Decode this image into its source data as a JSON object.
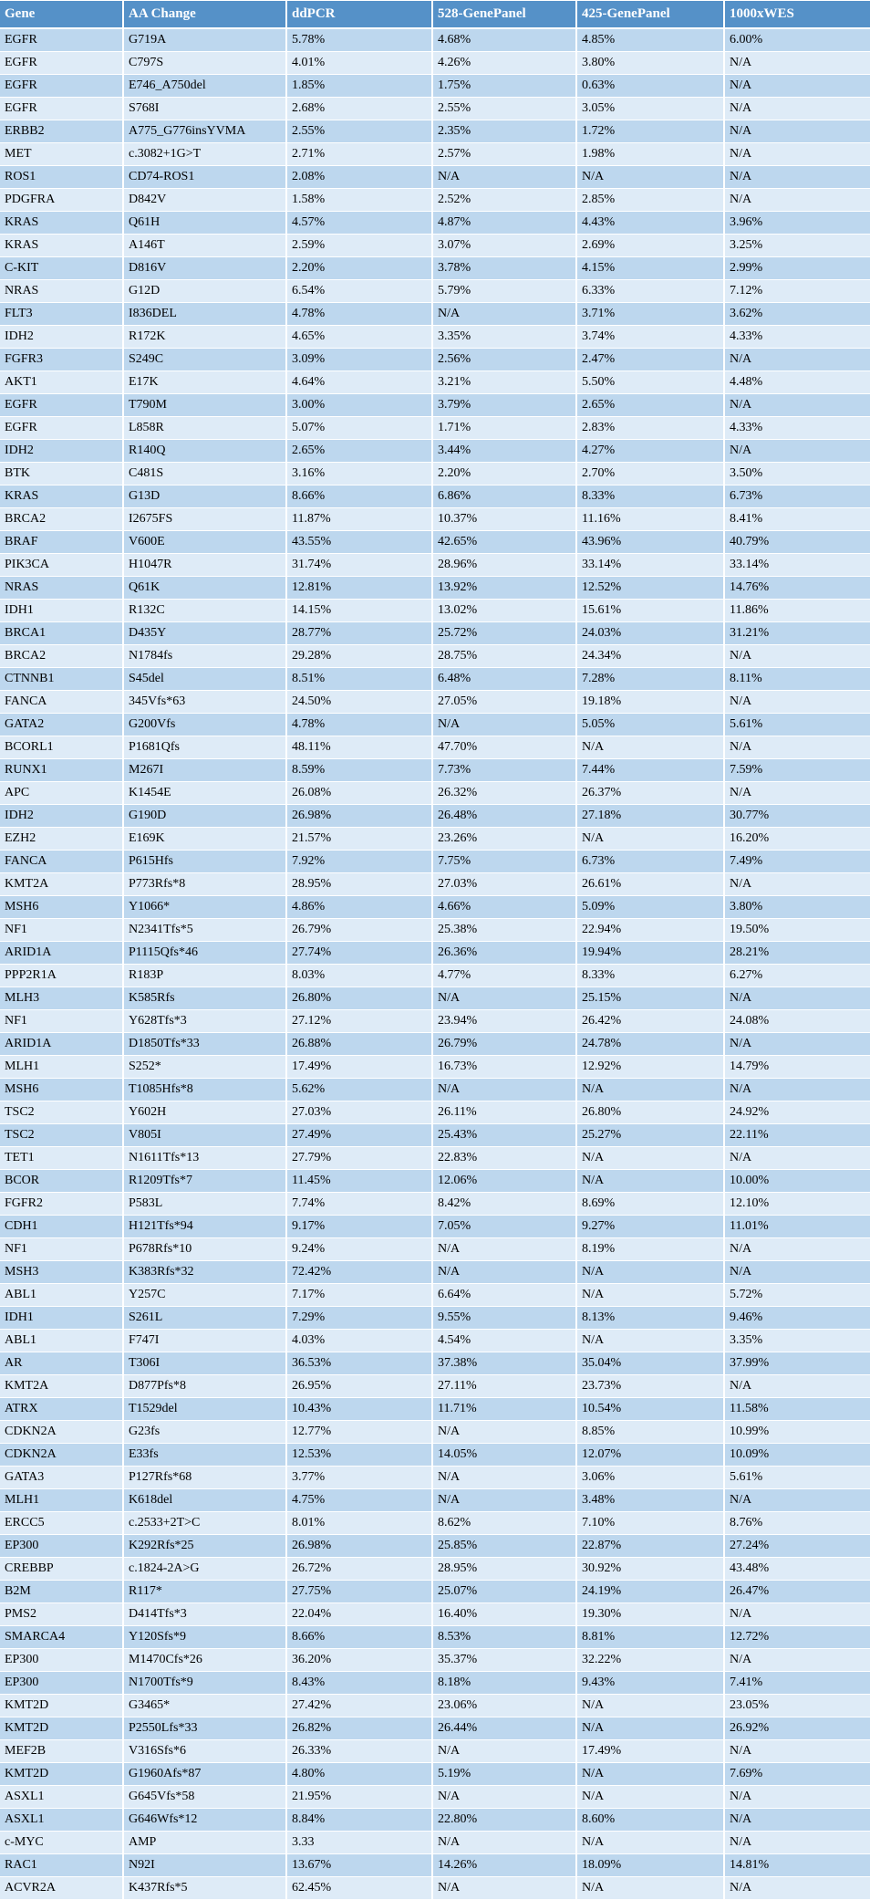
{
  "colors": {
    "header_bg": "#5591c8",
    "header_text": "#ffffff",
    "row_dark": "#bdd7ee",
    "row_light": "#deebf7",
    "body_text": "#000000",
    "grid": "#ffffff"
  },
  "table": {
    "columns": [
      {
        "id": "gene",
        "label": "Gene"
      },
      {
        "id": "aa-change",
        "label": "AA Change"
      },
      {
        "id": "ddpcr",
        "label": "ddPCR"
      },
      {
        "id": "528-genepanel",
        "label": "528-GenePanel"
      },
      {
        "id": "425-genepanel",
        "label": "425-GenePanel"
      },
      {
        "id": "1000xwes",
        "label": "1000xWES"
      }
    ],
    "rows": [
      [
        "EGFR",
        "G719A",
        "5.78%",
        "4.68%",
        "4.85%",
        "6.00%"
      ],
      [
        "EGFR",
        "C797S",
        "4.01%",
        "4.26%",
        "3.80%",
        "N/A"
      ],
      [
        "EGFR",
        "E746_A750del",
        "1.85%",
        "1.75%",
        "0.63%",
        "N/A"
      ],
      [
        "EGFR",
        "S768I",
        "2.68%",
        "2.55%",
        "3.05%",
        "N/A"
      ],
      [
        "ERBB2",
        "A775_G776insYVMA",
        "2.55%",
        "2.35%",
        "1.72%",
        "N/A"
      ],
      [
        "MET",
        "c.3082+1G>T",
        "2.71%",
        "2.57%",
        "1.98%",
        "N/A"
      ],
      [
        "ROS1",
        "CD74-ROS1",
        "2.08%",
        "N/A",
        "N/A",
        "N/A"
      ],
      [
        "PDGFRA",
        "D842V",
        "1.58%",
        "2.52%",
        "2.85%",
        "N/A"
      ],
      [
        "KRAS",
        "Q61H",
        "4.57%",
        "4.87%",
        "4.43%",
        "3.96%"
      ],
      [
        "KRAS",
        "A146T",
        "2.59%",
        "3.07%",
        "2.69%",
        "3.25%"
      ],
      [
        "C-KIT",
        "D816V",
        "2.20%",
        "3.78%",
        "4.15%",
        "2.99%"
      ],
      [
        "NRAS",
        "G12D",
        "6.54%",
        "5.79%",
        "6.33%",
        "7.12%"
      ],
      [
        "FLT3",
        "I836DEL",
        "4.78%",
        "N/A",
        "3.71%",
        "3.62%"
      ],
      [
        "IDH2",
        "R172K",
        "4.65%",
        "3.35%",
        "3.74%",
        "4.33%"
      ],
      [
        "FGFR3",
        "S249C",
        "3.09%",
        "2.56%",
        "2.47%",
        "N/A"
      ],
      [
        "AKT1",
        "E17K",
        "4.64%",
        "3.21%",
        "5.50%",
        "4.48%"
      ],
      [
        "EGFR",
        "T790M",
        "3.00%",
        "3.79%",
        "2.65%",
        "N/A"
      ],
      [
        "EGFR",
        "L858R",
        "5.07%",
        "1.71%",
        "2.83%",
        "4.33%"
      ],
      [
        "IDH2",
        "R140Q",
        "2.65%",
        "3.44%",
        "4.27%",
        "N/A"
      ],
      [
        "BTK",
        "C481S",
        "3.16%",
        "2.20%",
        "2.70%",
        "3.50%"
      ],
      [
        "KRAS",
        "G13D",
        "8.66%",
        "6.86%",
        "8.33%",
        "6.73%"
      ],
      [
        "BRCA2",
        "I2675FS",
        "11.87%",
        "10.37%",
        "11.16%",
        "8.41%"
      ],
      [
        "BRAF",
        "V600E",
        "43.55%",
        "42.65%",
        "43.96%",
        "40.79%"
      ],
      [
        "PIK3CA",
        "H1047R",
        "31.74%",
        "28.96%",
        "33.14%",
        "33.14%"
      ],
      [
        "NRAS",
        "Q61K",
        "12.81%",
        "13.92%",
        "12.52%",
        "14.76%"
      ],
      [
        "IDH1",
        "R132C",
        "14.15%",
        "13.02%",
        "15.61%",
        "11.86%"
      ],
      [
        "BRCA1",
        "D435Y",
        "28.77%",
        "25.72%",
        "24.03%",
        "31.21%"
      ],
      [
        "BRCA2",
        "N1784fs",
        "29.28%",
        "28.75%",
        "24.34%",
        "N/A"
      ],
      [
        "CTNNB1",
        "S45del",
        "8.51%",
        "6.48%",
        "7.28%",
        "8.11%"
      ],
      [
        "FANCA",
        "345Vfs*63",
        "24.50%",
        "27.05%",
        "19.18%",
        "N/A"
      ],
      [
        "GATA2",
        "G200Vfs",
        "4.78%",
        "N/A",
        "5.05%",
        "5.61%"
      ],
      [
        "BCORL1",
        "P1681Qfs",
        "48.11%",
        "47.70%",
        "N/A",
        "N/A"
      ],
      [
        "RUNX1",
        "M267I",
        "8.59%",
        "7.73%",
        "7.44%",
        "7.59%"
      ],
      [
        "APC",
        "K1454E",
        "26.08%",
        "26.32%",
        "26.37%",
        "N/A"
      ],
      [
        "IDH2",
        "G190D",
        "26.98%",
        "26.48%",
        "27.18%",
        "30.77%"
      ],
      [
        "EZH2",
        "E169K",
        "21.57%",
        "23.26%",
        "N/A",
        "16.20%"
      ],
      [
        "FANCA",
        "P615Hfs",
        "7.92%",
        "7.75%",
        "6.73%",
        "7.49%"
      ],
      [
        "KMT2A",
        "P773Rfs*8",
        "28.95%",
        "27.03%",
        "26.61%",
        "N/A"
      ],
      [
        "MSH6",
        "Y1066*",
        "4.86%",
        "4.66%",
        "5.09%",
        "3.80%"
      ],
      [
        "NF1",
        "N2341Tfs*5",
        "26.79%",
        "25.38%",
        "22.94%",
        "19.50%"
      ],
      [
        "ARID1A",
        "P1115Qfs*46",
        "27.74%",
        "26.36%",
        "19.94%",
        "28.21%"
      ],
      [
        "PPP2R1A",
        "R183P",
        "8.03%",
        "4.77%",
        "8.33%",
        "6.27%"
      ],
      [
        "MLH3",
        "K585Rfs",
        "26.80%",
        "N/A",
        "25.15%",
        "N/A"
      ],
      [
        "NF1",
        "Y628Tfs*3",
        "27.12%",
        "23.94%",
        "26.42%",
        "24.08%"
      ],
      [
        "ARID1A",
        "D1850Tfs*33",
        "26.88%",
        "26.79%",
        "24.78%",
        "N/A"
      ],
      [
        "MLH1",
        "S252*",
        "17.49%",
        "16.73%",
        "12.92%",
        "14.79%"
      ],
      [
        "MSH6",
        "T1085Hfs*8",
        "5.62%",
        "N/A",
        "N/A",
        "N/A"
      ],
      [
        "TSC2",
        "Y602H",
        "27.03%",
        "26.11%",
        "26.80%",
        "24.92%"
      ],
      [
        "TSC2",
        "V805I",
        "27.49%",
        "25.43%",
        "25.27%",
        "22.11%"
      ],
      [
        "TET1",
        "N1611Tfs*13",
        "27.79%",
        "22.83%",
        "N/A",
        "N/A"
      ],
      [
        "BCOR",
        "R1209Tfs*7",
        "11.45%",
        "12.06%",
        "N/A",
        "10.00%"
      ],
      [
        "FGFR2",
        "P583L",
        "7.74%",
        "8.42%",
        "8.69%",
        "12.10%"
      ],
      [
        "CDH1",
        "H121Tfs*94",
        "9.17%",
        "7.05%",
        "9.27%",
        "11.01%"
      ],
      [
        "NF1",
        "P678Rfs*10",
        "9.24%",
        "N/A",
        "8.19%",
        "N/A"
      ],
      [
        "MSH3",
        "K383Rfs*32",
        "72.42%",
        "N/A",
        "N/A",
        "N/A"
      ],
      [
        "ABL1",
        "Y257C",
        "7.17%",
        "6.64%",
        "N/A",
        "5.72%"
      ],
      [
        "IDH1",
        "S261L",
        "7.29%",
        "9.55%",
        "8.13%",
        "9.46%"
      ],
      [
        "ABL1",
        "F747I",
        "4.03%",
        "4.54%",
        "N/A",
        "3.35%"
      ],
      [
        "AR",
        "T306I",
        "36.53%",
        "37.38%",
        "35.04%",
        "37.99%"
      ],
      [
        "KMT2A",
        "D877Pfs*8",
        "26.95%",
        "27.11%",
        "23.73%",
        "N/A"
      ],
      [
        "ATRX",
        "T1529del",
        "10.43%",
        "11.71%",
        "10.54%",
        "11.58%"
      ],
      [
        "CDKN2A",
        "G23fs",
        "12.77%",
        "N/A",
        "8.85%",
        "10.99%"
      ],
      [
        "CDKN2A",
        "E33fs",
        "12.53%",
        "14.05%",
        "12.07%",
        "10.09%"
      ],
      [
        "GATA3",
        "P127Rfs*68",
        "3.77%",
        "N/A",
        "3.06%",
        "5.61%"
      ],
      [
        "MLH1",
        "K618del",
        "4.75%",
        "N/A",
        "3.48%",
        "N/A"
      ],
      [
        "ERCC5",
        "c.2533+2T>C",
        "8.01%",
        "8.62%",
        "7.10%",
        "8.76%"
      ],
      [
        "EP300",
        "K292Rfs*25",
        "26.98%",
        "25.85%",
        "22.87%",
        "27.24%"
      ],
      [
        "CREBBP",
        "c.1824-2A>G",
        "26.72%",
        "28.95%",
        "30.92%",
        "43.48%"
      ],
      [
        "B2M",
        "R117*",
        "27.75%",
        "25.07%",
        "24.19%",
        "26.47%"
      ],
      [
        "PMS2",
        "D414Tfs*3",
        "22.04%",
        "16.40%",
        "19.30%",
        "N/A"
      ],
      [
        "SMARCA4",
        "Y120Sfs*9",
        "8.66%",
        "8.53%",
        "8.81%",
        "12.72%"
      ],
      [
        "EP300",
        "M1470Cfs*26",
        "36.20%",
        "35.37%",
        "32.22%",
        "N/A"
      ],
      [
        "EP300",
        "N1700Tfs*9",
        "8.43%",
        "8.18%",
        "9.43%",
        "7.41%"
      ],
      [
        "KMT2D",
        "G3465*",
        "27.42%",
        "23.06%",
        "N/A",
        "23.05%"
      ],
      [
        "KMT2D",
        "P2550Lfs*33",
        "26.82%",
        "26.44%",
        "N/A",
        "26.92%"
      ],
      [
        "MEF2B",
        "V316Sfs*6",
        "26.33%",
        "N/A",
        "17.49%",
        "N/A"
      ],
      [
        "KMT2D",
        "G1960Afs*87",
        "4.80%",
        "5.19%",
        "N/A",
        "7.69%"
      ],
      [
        "ASXL1",
        "G645Vfs*58",
        "21.95%",
        "N/A",
        "N/A",
        "N/A"
      ],
      [
        "ASXL1",
        "G646Wfs*12",
        "8.84%",
        "22.80%",
        "8.60%",
        "N/A"
      ],
      [
        "c-MYC",
        "AMP",
        "3.33",
        "N/A",
        "N/A",
        "N/A"
      ],
      [
        "RAC1",
        "N92I",
        "13.67%",
        "14.26%",
        "18.09%",
        "14.81%"
      ],
      [
        "ACVR2A",
        "K437Rfs*5",
        "62.45%",
        "N/A",
        "N/A",
        "N/A"
      ]
    ]
  }
}
